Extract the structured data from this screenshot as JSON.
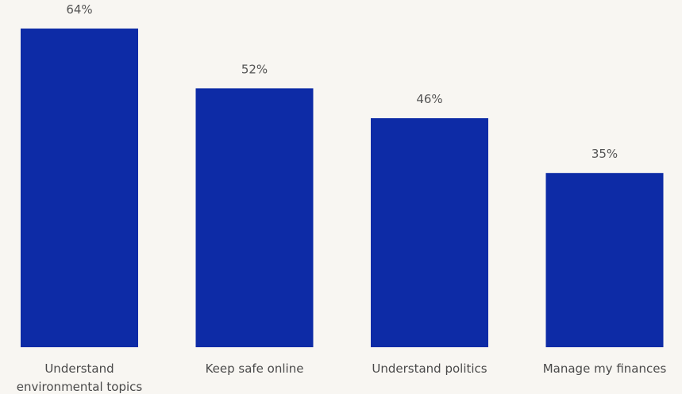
{
  "chart_data": {
    "type": "bar",
    "categories": [
      [
        "Understand",
        "environmental topics"
      ],
      [
        "Keep safe online"
      ],
      [
        "Understand politics"
      ],
      [
        "Manage my finances"
      ]
    ],
    "values": [
      64,
      52,
      46,
      35
    ],
    "value_labels": [
      "64%",
      "52%",
      "46%",
      "35%"
    ],
    "title": "",
    "xlabel": "",
    "ylabel": "",
    "ylim": [
      0,
      64
    ],
    "grid": false,
    "legend": "none"
  },
  "colors": {
    "background": "#f8f6f2",
    "bar": "#0d2ba6",
    "value_text": "#555555",
    "category_text": "#4a4a4a"
  }
}
